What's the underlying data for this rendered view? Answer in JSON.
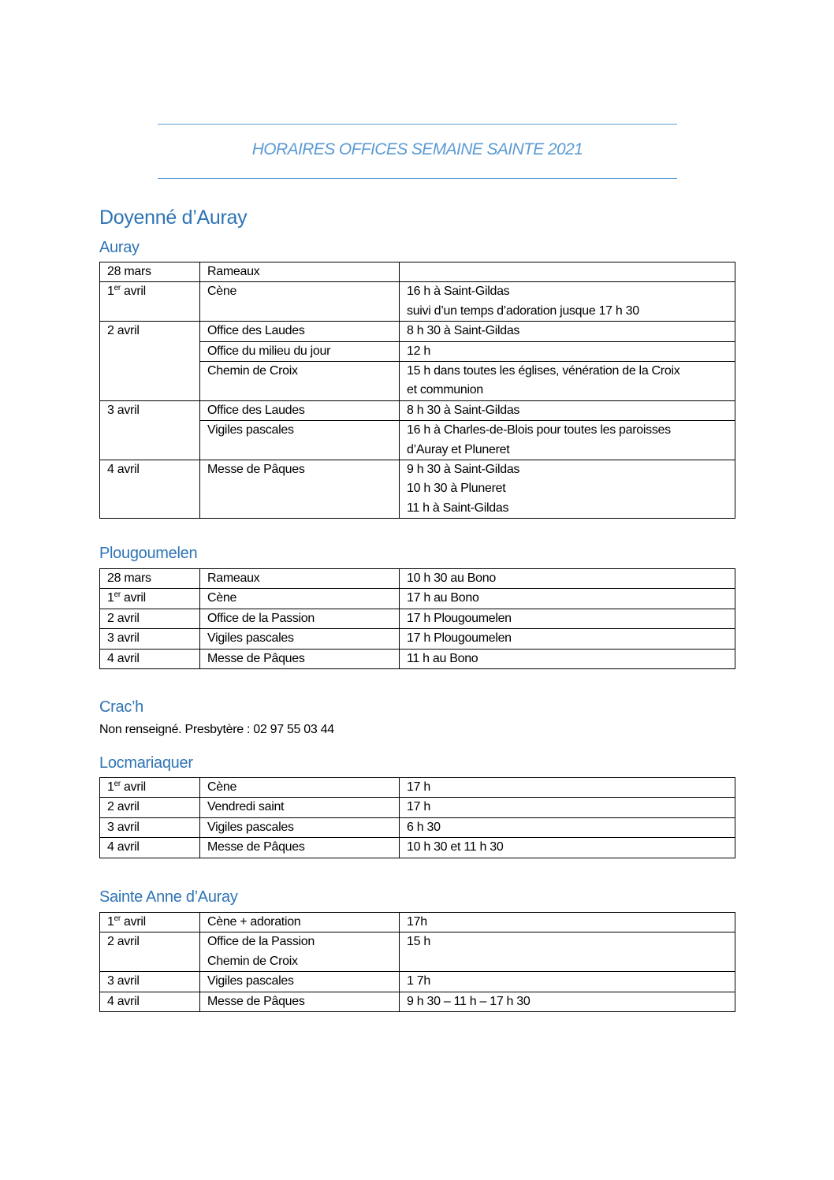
{
  "title": "HORAIRES OFFICES SEMAINE SAINTE 2021",
  "heading": "Doyenné d’Auray",
  "colors": {
    "title": "#5b9bd5",
    "heading": "#2e74b5"
  },
  "sections": [
    {
      "name": "Auray",
      "rows": [
        {
          "date": "28 mars",
          "span": 1,
          "office": "Rameaux",
          "time": [
            ""
          ]
        },
        {
          "date": "1",
          "sup": "er",
          "date_rest": " avril",
          "span": 1,
          "office": "Cène",
          "time": [
            "16 h à Saint-Gildas",
            "suivi d’un temps d’adoration jusque 17 h 30"
          ]
        },
        {
          "date": "2 avril",
          "span": 3,
          "office": "Office des Laudes",
          "time": [
            "8 h 30 à Saint-Gildas"
          ]
        },
        {
          "office": "Office du milieu du jour",
          "time": [
            "12 h"
          ]
        },
        {
          "office": "Chemin de Croix",
          "time": [
            "15 h dans toutes les églises, vénération de la Croix",
            "et communion"
          ]
        },
        {
          "date": "3 avril",
          "span": 2,
          "office": "Office des Laudes",
          "time": [
            "8 h 30 à Saint-Gildas"
          ]
        },
        {
          "office": "Vigiles pascales",
          "time": [
            "16 h à Charles-de-Blois pour toutes les paroisses",
            "d’Auray et Pluneret"
          ]
        },
        {
          "date": "4 avril",
          "span": 1,
          "office": "Messe de Pâques",
          "time": [
            "9 h 30 à Saint-Gildas",
            "10 h 30 à Pluneret",
            "11 h à Saint-Gildas"
          ]
        }
      ]
    },
    {
      "name": "Plougoumelen",
      "rows": [
        {
          "date": "28 mars",
          "span": 1,
          "office": "Rameaux",
          "time": [
            "10 h 30 au Bono"
          ]
        },
        {
          "date": "1",
          "sup": "er",
          "date_rest": " avril",
          "span": 1,
          "office": "Cène",
          "time": [
            "17 h au Bono"
          ]
        },
        {
          "date": "2 avril",
          "span": 1,
          "office": "Office de la Passion",
          "time": [
            "17 h Plougoumelen"
          ]
        },
        {
          "date": "3 avril",
          "span": 1,
          "office": "Vigiles pascales",
          "time": [
            "17 h Plougoumelen"
          ]
        },
        {
          "date": "4 avril",
          "span": 1,
          "office": "Messe de Pâques",
          "time": [
            "11 h au Bono"
          ]
        }
      ]
    },
    {
      "name": "Crac’h",
      "note": "Non renseigné. Presbytère : 02 97 55 03 44"
    },
    {
      "name": "Locmariaquer",
      "rows": [
        {
          "date": "1",
          "sup": "er",
          "date_rest": " avril",
          "span": 1,
          "office": "Cène",
          "time": [
            "17 h"
          ]
        },
        {
          "date": "2 avril",
          "span": 1,
          "office": "Vendredi saint",
          "time": [
            "17 h"
          ]
        },
        {
          "date": "3 avril",
          "span": 1,
          "office": "Vigiles pascales",
          "time": [
            "6 h 30"
          ]
        },
        {
          "date": "4 avril",
          "span": 1,
          "office": "Messe de Pâques",
          "time": [
            "10 h 30 et 11 h 30"
          ]
        }
      ]
    },
    {
      "name": "Sainte Anne d’Auray",
      "rows": [
        {
          "date": "1",
          "sup": "er",
          "date_rest": " avril",
          "span": 1,
          "office": "Cène + adoration",
          "time": [
            "17h"
          ]
        },
        {
          "date": "2 avril",
          "span": 1,
          "office": "Office de la Passion\nChemin de Croix",
          "time": [
            "15 h"
          ]
        },
        {
          "date": "3 avril",
          "span": 1,
          "office": "Vigiles pascales",
          "time": [
            "1 7h"
          ]
        },
        {
          "date": "4 avril",
          "span": 1,
          "office": "Messe de Pâques",
          "time": [
            "9 h 30 – 11 h – 17 h 30"
          ]
        }
      ]
    }
  ]
}
